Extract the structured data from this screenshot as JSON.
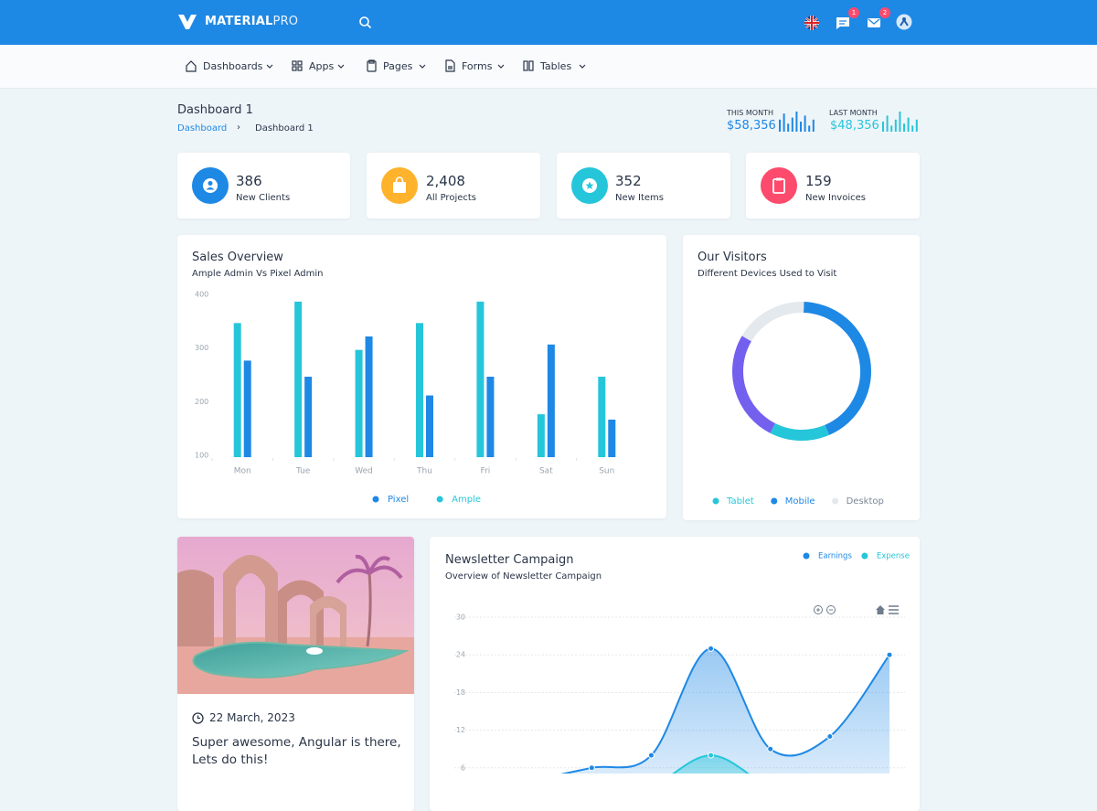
{
  "header": {
    "brand_bold": "MATERIAL",
    "brand_light": "PRO",
    "badges": [
      1,
      2
    ]
  },
  "nav": [
    "Dashboards",
    "Apps",
    "Pages",
    "Forms",
    "Tables"
  ],
  "page": {
    "title": "Dashboard 1",
    "breadcrumb": [
      "Dashboard",
      "Dashboard 1"
    ]
  },
  "month_stats": [
    {
      "label": "THIS MONTH",
      "value": "$58,356",
      "color": "#1e88e5",
      "spark": [
        6,
        9,
        4,
        7,
        10,
        5,
        8,
        3,
        6
      ]
    },
    {
      "label": "LAST MONTH",
      "value": "$48,356",
      "color": "#26c6da",
      "spark": [
        5,
        8,
        3,
        6,
        10,
        4,
        7,
        3,
        6
      ]
    }
  ],
  "stats": [
    {
      "value": "386",
      "label": "New Clients",
      "color": "#1e88e5"
    },
    {
      "value": "2,408",
      "label": "All Projects",
      "color": "#ffb22b"
    },
    {
      "value": "352",
      "label": "New Items",
      "color": "#26c6da"
    },
    {
      "value": "159",
      "label": "New Invoices",
      "color": "#fc4b6c"
    }
  ],
  "chart_data": [
    {
      "type": "bar",
      "title": "Sales Overview",
      "subtitle": "Ample Admin Vs Pixel Admin",
      "categories": [
        "Mon",
        "Tue",
        "Wed",
        "Thu",
        "Fri",
        "Sat",
        "Sun"
      ],
      "series": [
        {
          "name": "Pixel",
          "color": "#1e88e5",
          "values": [
            280,
            250,
            325,
            215,
            250,
            310,
            170
          ]
        },
        {
          "name": "Ample",
          "color": "#26c6da",
          "values": [
            350,
            390,
            300,
            350,
            390,
            180,
            250
          ]
        }
      ],
      "ylim": [
        100,
        400
      ],
      "yticks": [
        100,
        200,
        300,
        400
      ],
      "grid": false,
      "legend": "bottom"
    },
    {
      "type": "donut",
      "title": "Our Visitors",
      "subtitle": "Different Devices Used to Visit",
      "categories": [
        "Tablet",
        "Mobile",
        "Desktop",
        null
      ],
      "values": [
        14,
        43,
        17,
        26
      ],
      "colors": [
        "#26c6da",
        "#1e88e5",
        "#e4e9ee",
        "#7460ee"
      ],
      "legend": "bottom"
    },
    {
      "type": "area",
      "title": "Newsletter Campaign",
      "subtitle": "Overview of Newsletter Campaign",
      "series": [
        {
          "name": "Earnings",
          "color": "#1e88e5",
          "values": [
            2,
            4,
            6,
            8,
            25,
            9,
            11,
            24
          ]
        },
        {
          "name": "Expense",
          "color": "#26c6da",
          "values": [
            0,
            2,
            1,
            3,
            8,
            3,
            1,
            2
          ]
        }
      ],
      "ylim": [
        0,
        30
      ],
      "yticks": [
        6,
        12,
        18,
        24,
        30
      ],
      "grid": true,
      "legend": "top-right"
    }
  ],
  "blog": {
    "date": "22 March, 2023",
    "title": "Super awesome, Angular is there, Lets do this!"
  }
}
